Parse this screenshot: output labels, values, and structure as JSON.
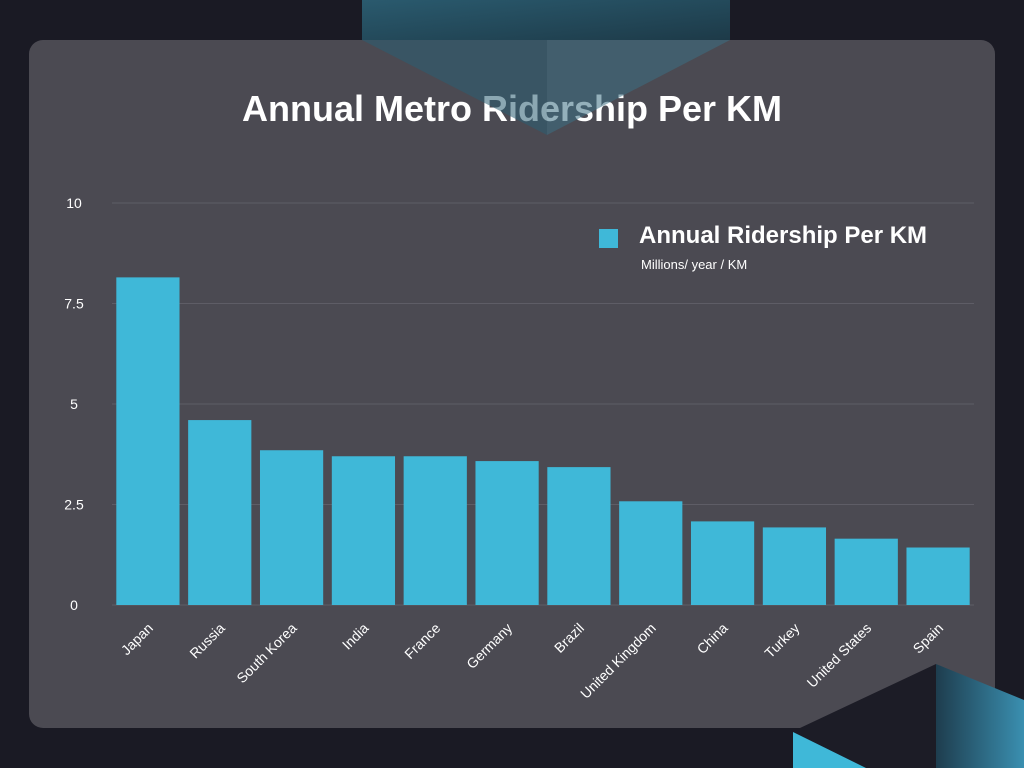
{
  "chart_data": {
    "type": "bar",
    "title": "Annual Metro Ridership Per KM",
    "categories": [
      "Japan",
      "Russia",
      "South Korea",
      "India",
      "France",
      "Germany",
      "Brazil",
      "United Kingdom",
      "China",
      "Turkey",
      "United States",
      "Spain"
    ],
    "series": [
      {
        "name": "Annual Ridership Per KM",
        "values": [
          8.15,
          4.6,
          3.85,
          3.7,
          3.7,
          3.58,
          3.43,
          2.58,
          2.08,
          1.93,
          1.65,
          1.43
        ]
      }
    ],
    "legend_subtitle": "Millions/ year / KM",
    "yticks": [
      "0",
      "2.5",
      "5",
      "7.5",
      "10"
    ],
    "ylim": [
      0,
      10
    ],
    "grid": true,
    "legend_position": "top-right",
    "colors": {
      "bar": "#3fb8d8",
      "card": "#4b4a52",
      "background": "#1a1a24",
      "text": "#ffffff"
    }
  }
}
